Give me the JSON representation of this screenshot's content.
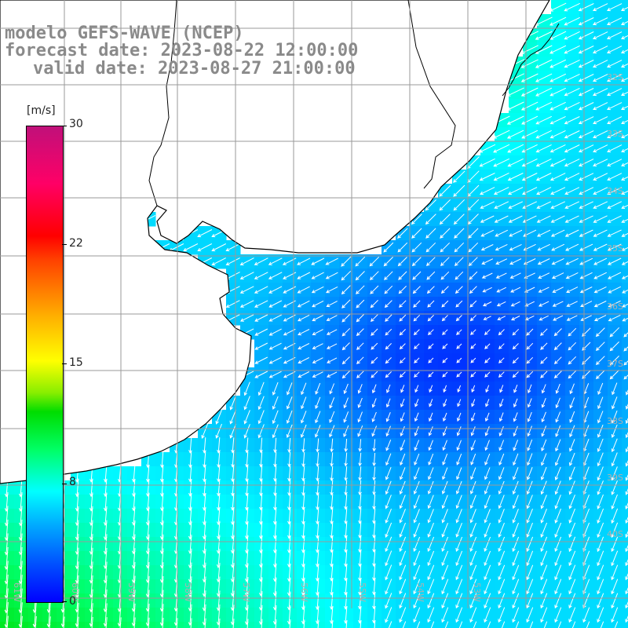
{
  "header": {
    "line1": "modelo GEFS-WAVE (NCEP)",
    "line2": "forecast date: 2023-08-22 12:00:00",
    "line3": "valid date: 2023-08-27 21:00:00"
  },
  "colorbar": {
    "unit": "[m/s]",
    "ticks": [
      "30",
      "22",
      "15",
      "8",
      "0"
    ],
    "tick_values": [
      30,
      22,
      15,
      8,
      0
    ],
    "range": [
      0,
      30
    ],
    "colors": [
      "#0000ff",
      "#00a8ff",
      "#00ffff",
      "#00dd00",
      "#ffff00",
      "#ff4000",
      "#ff0000",
      "#c0107a"
    ]
  },
  "axes": {
    "lat_labels": [
      "32S",
      "33S",
      "34S",
      "35S",
      "36S",
      "37S",
      "38S",
      "39S",
      "40S"
    ],
    "lon_labels": [
      "61W",
      "60W",
      "59W",
      "58W",
      "57W",
      "56W",
      "55W",
      "54W",
      "53W"
    ]
  },
  "map": {
    "land_color": "#ffffff",
    "coastline_color": "#000000",
    "grid_color": "#9a9a9a",
    "arrow_color": "#ffffff",
    "field": "wind speed"
  }
}
